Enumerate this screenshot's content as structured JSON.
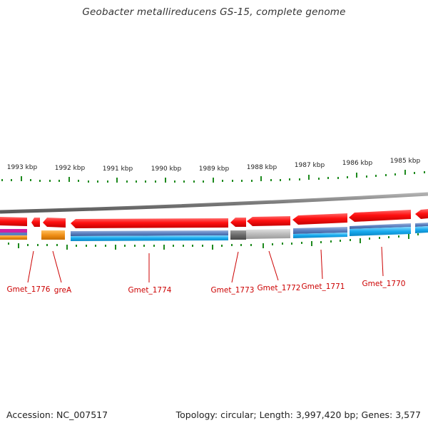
{
  "title": "Geobacter metallireducens GS-15, complete genome",
  "footer": {
    "accession": "Accession: NC_007517",
    "topology": "Topology: circular; Length: 3,997,420 bp; Genes: 3,577"
  },
  "colors": {
    "forward_gene": "#ee1111",
    "backbone": "#8a8a8a",
    "tick": "#1e8a1e",
    "label": "#cc0000",
    "orange_feature": "#f09018",
    "magenta_feature": "#d020a0",
    "steel_feature": "#5a7fbf",
    "cyan_feature": "#18aaee",
    "dark_gray_feature": "#6a6a6a",
    "light_gray_feature": "#b8b8b8"
  },
  "kbp_labels": [
    "1993 kbp",
    "1992 kbp",
    "1991 kbp",
    "1990 kbp",
    "1989 kbp",
    "1988 kbp",
    "1987 kbp",
    "1986 kbp",
    "1985 kbp"
  ],
  "gene_labels": [
    "Gmet_1776",
    "greA",
    "Gmet_1774",
    "Gmet_1773",
    "Gmet_1772",
    "Gmet_1771",
    "Gmet_1770"
  ]
}
